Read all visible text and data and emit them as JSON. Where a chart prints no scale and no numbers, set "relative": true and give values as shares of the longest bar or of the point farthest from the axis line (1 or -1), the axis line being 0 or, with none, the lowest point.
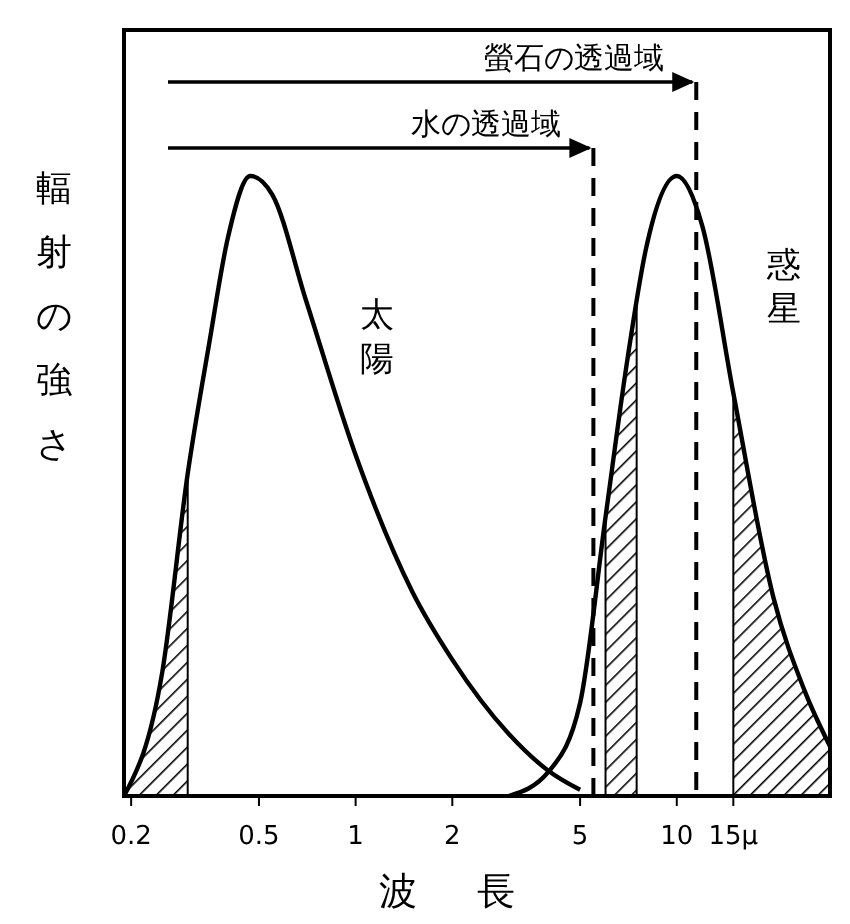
{
  "chart_data": {
    "type": "line",
    "xlabel": "波長",
    "ylabel": "輻射の強さ",
    "relative": true,
    "log": "x",
    "xlim": [
      0.19,
      30
    ],
    "xticks": [
      {
        "value": 0.2,
        "label": "0.2"
      },
      0.5,
      1,
      2,
      5,
      10,
      {
        "value": 15,
        "label": "15μ"
      }
    ],
    "legend": false,
    "grid": false,
    "series": [
      {
        "name": "太陽",
        "color": "#000000",
        "x": [
          0.19,
          0.25,
          0.3,
          0.35,
          0.4,
          0.47,
          0.55,
          0.7,
          1,
          1.5,
          2,
          3,
          4,
          5
        ],
        "values": [
          0,
          0.2,
          0.52,
          0.73,
          0.9,
          1,
          0.97,
          0.8,
          0.55,
          0.33,
          0.22,
          0.1,
          0.04,
          0.01
        ]
      },
      {
        "name": "惑星",
        "color": "#000000",
        "x": [
          3,
          4,
          5,
          6,
          7,
          8,
          10,
          12,
          15,
          20,
          25,
          30
        ],
        "values": [
          0,
          0.04,
          0.15,
          0.45,
          0.7,
          0.88,
          1,
          0.92,
          0.65,
          0.32,
          0.17,
          0.08
        ]
      },
      {
        "type": "area",
        "color": "#000000",
        "x": [
          0.19,
          0.25,
          0.3
        ],
        "values": [
          0,
          0.2,
          0.52
        ]
      },
      {
        "type": "area",
        "color": "#000000",
        "x": [
          6,
          7,
          7.5
        ],
        "values": [
          0.45,
          0.7,
          0.79
        ]
      },
      {
        "type": "area",
        "color": "#000000",
        "x": [
          15,
          20,
          25,
          30
        ],
        "values": [
          0.65,
          0.32,
          0.17,
          0.08
        ]
      }
    ],
    "ref_lines": [
      {
        "axis": "x",
        "value": 11.5,
        "label": "螢石の透過域",
        "line_style": "dashed"
      },
      {
        "axis": "x",
        "value": 5.5,
        "label": "水の透過域",
        "line_style": "dashed"
      }
    ]
  }
}
